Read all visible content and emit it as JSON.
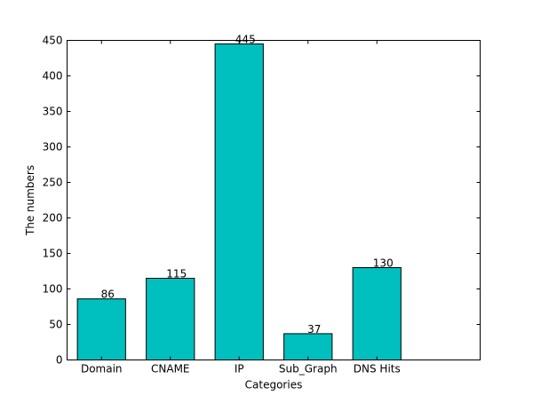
{
  "chart_data": {
    "type": "bar",
    "title": "",
    "xlabel": "Categories",
    "ylabel": "The numbers",
    "categories": [
      "Domain",
      "CNAME",
      "IP",
      "Sub_Graph",
      "DNS Hits"
    ],
    "values": [
      86,
      115,
      445,
      37,
      130
    ],
    "data_labels": [
      "86",
      "115",
      "445",
      "37",
      "130"
    ],
    "ylim": [
      0,
      450
    ],
    "yticks": [
      0,
      50,
      100,
      150,
      200,
      250,
      300,
      350,
      400,
      450
    ],
    "ytick_labels": [
      "0",
      "50",
      "100",
      "150",
      "200",
      "250",
      "300",
      "350",
      "400",
      "450"
    ],
    "bar_color": "#00bfbf",
    "grid": false,
    "legend": "none"
  }
}
